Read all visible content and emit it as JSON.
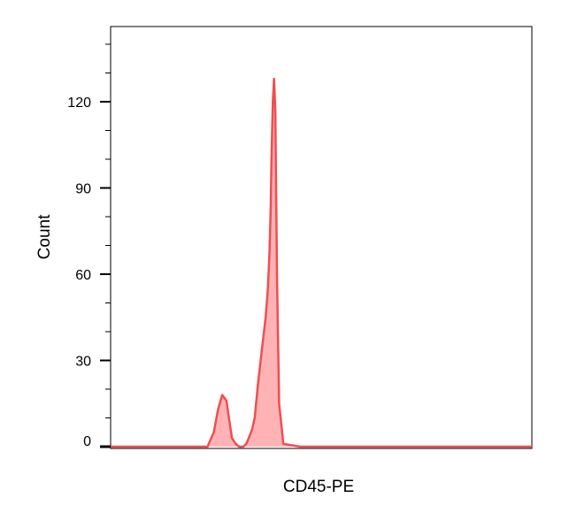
{
  "chart_data": {
    "type": "area",
    "title": "",
    "xlabel": "CD45-PE",
    "ylabel": "Count",
    "xlim": [
      0,
      1000
    ],
    "ylim": [
      -2,
      145
    ],
    "yticks": [
      0,
      30,
      60,
      90,
      120
    ],
    "y_minor_ticks": [
      10,
      20,
      40,
      50,
      70,
      80,
      100,
      110,
      130,
      140
    ],
    "x_tick_labels": [],
    "grid": false,
    "legend": "none",
    "colors": {
      "line": "#f24d4f",
      "fill": "#ffb3b5"
    },
    "series": [
      {
        "x": [
          0,
          230,
          245,
          255,
          265,
          275,
          282,
          288,
          297,
          305,
          315,
          322,
          328,
          336,
          342,
          350,
          360,
          368,
          373,
          377,
          380,
          382,
          385,
          388,
          391,
          395,
          400,
          410,
          450,
          1000
        ],
        "values": [
          0,
          0,
          5,
          13,
          18,
          16,
          9,
          3,
          1,
          0,
          0,
          1,
          3,
          6,
          10,
          22,
          35,
          45,
          54,
          67,
          83,
          100,
          120,
          128,
          117,
          60,
          15,
          1,
          0,
          0
        ]
      }
    ]
  }
}
